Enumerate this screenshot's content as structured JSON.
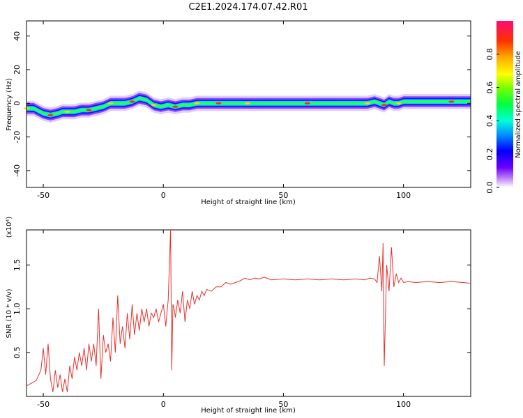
{
  "title": "C2E1.2024.174.07.42.R01",
  "chart_data": [
    {
      "type": "heatmap",
      "xlabel": "Height of straight line (km)",
      "ylabel": "Frequency (Hz)",
      "xlim": [
        -57,
        128
      ],
      "ylim": [
        -50,
        49
      ],
      "xticks": [
        -50,
        0,
        50,
        100
      ],
      "yticks": [
        -40,
        -20,
        0,
        20,
        40
      ],
      "colorbar": {
        "label": "Normalized spectral amplitude",
        "range": [
          0.0,
          1.0
        ],
        "ticks": [
          "0.0",
          "0.2",
          "0.4",
          "0.6",
          "0.8"
        ]
      },
      "ridge": {
        "x": [
          -57,
          -54,
          -50,
          -47,
          -44,
          -42,
          -40,
          -37,
          -34,
          -31,
          -28,
          -25,
          -22,
          -19,
          -16,
          -13,
          -10,
          -7,
          -4,
          -1,
          2,
          5,
          8,
          11,
          14,
          17,
          20,
          23,
          26,
          30,
          35,
          40,
          50,
          60,
          70,
          80,
          85,
          88,
          90,
          92,
          94,
          96,
          98,
          100,
          110,
          120,
          128
        ],
        "y": [
          -3,
          -3,
          -6,
          -7,
          -6,
          -5,
          -5,
          -5,
          -4,
          -4,
          -3,
          -2,
          0,
          0,
          0,
          1,
          3,
          2,
          -1,
          -2,
          -1,
          -2,
          -1,
          -1,
          0,
          0,
          0,
          0,
          0,
          0,
          0,
          0,
          0,
          0,
          0,
          0,
          0,
          1,
          0,
          -1,
          1,
          0,
          0,
          1,
          1,
          1,
          1
        ]
      }
    },
    {
      "type": "line",
      "xlabel": "Height of straight line (km)",
      "ylabel": "SNR (10 * v/v)",
      "scale_label": "(x10⁴)",
      "xlim": [
        -57,
        128
      ],
      "ylim": [
        0.0,
        1.9
      ],
      "xticks": [
        -50,
        0,
        50,
        100
      ],
      "yticks": [
        0.5,
        1.0,
        1.5
      ],
      "ytick_labels": [
        "0.5",
        "1.0",
        "1.5"
      ],
      "series": [
        {
          "x": [
            -57,
            -55,
            -53,
            -51,
            -50,
            -49,
            -48,
            -47,
            -46,
            -45,
            -44,
            -43,
            -42,
            -41,
            -40,
            -39,
            -38,
            -37,
            -36,
            -35,
            -34,
            -33,
            -32,
            -31,
            -30,
            -29,
            -28,
            -27,
            -26,
            -25,
            -24,
            -23,
            -22,
            -21,
            -20,
            -19,
            -18,
            -17,
            -16,
            -15,
            -14,
            -13,
            -12,
            -11,
            -10,
            -9,
            -8,
            -7,
            -6,
            -5,
            -4,
            -3,
            -2,
            -1,
            0,
            1,
            2,
            3,
            3.5,
            4,
            4.5,
            5,
            6,
            7,
            8,
            9,
            10,
            11,
            12,
            13,
            14,
            15,
            16,
            17,
            18,
            20,
            22,
            24,
            26,
            28,
            30,
            32,
            34,
            36,
            38,
            40,
            42,
            45,
            50,
            55,
            60,
            65,
            70,
            75,
            80,
            84,
            86,
            88,
            89,
            90,
            91,
            91.5,
            92,
            93,
            94,
            95,
            96,
            97,
            98,
            99,
            100,
            102,
            105,
            110,
            115,
            120,
            125,
            128
          ],
          "values": [
            0.12,
            0.15,
            0.18,
            0.3,
            0.55,
            0.25,
            0.6,
            0.2,
            0.05,
            0.3,
            0.1,
            0.25,
            0.05,
            0.2,
            0.05,
            0.35,
            0.2,
            0.45,
            0.3,
            0.5,
            0.35,
            0.55,
            0.3,
            0.6,
            0.4,
            0.6,
            0.35,
            1.0,
            0.2,
            0.7,
            0.5,
            0.6,
            0.4,
            0.9,
            0.5,
            1.15,
            0.6,
            0.8,
            0.55,
            0.95,
            0.65,
            1.05,
            0.7,
            0.95,
            0.75,
            1.0,
            0.85,
            1.0,
            0.8,
            0.95,
            0.9,
            1.0,
            0.85,
            0.95,
            1.05,
            0.8,
            1.1,
            1.9,
            0.3,
            1.05,
            1.0,
            0.9,
            1.1,
            0.95,
            1.2,
            0.85,
            1.1,
            1.0,
            1.2,
            1.05,
            1.15,
            1.1,
            1.2,
            1.15,
            1.22,
            1.2,
            1.25,
            1.25,
            1.3,
            1.28,
            1.3,
            1.32,
            1.35,
            1.33,
            1.35,
            1.34,
            1.36,
            1.33,
            1.34,
            1.33,
            1.34,
            1.33,
            1.34,
            1.33,
            1.34,
            1.33,
            1.35,
            1.34,
            1.3,
            1.6,
            1.2,
            1.75,
            0.35,
            1.5,
            1.2,
            1.7,
            1.25,
            1.4,
            1.3,
            1.35,
            1.3,
            1.31,
            1.3,
            1.31,
            1.3,
            1.31,
            1.3,
            1.29
          ]
        }
      ]
    }
  ]
}
